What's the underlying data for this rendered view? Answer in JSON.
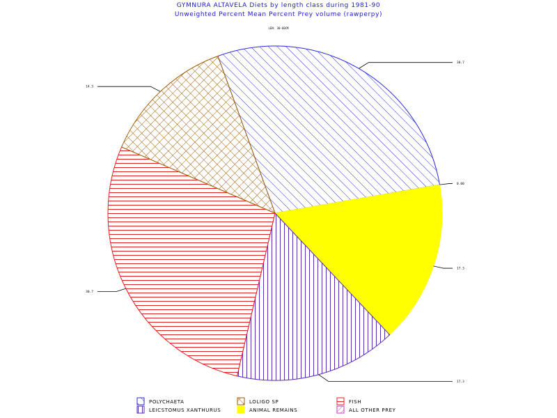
{
  "chart_data": {
    "type": "pie",
    "title": "GYMNURA ALTAVELA Diets by length class during 1981-90",
    "subtitle": "Unweighted Percent Mean Percent Prey  volume (rawperpy)",
    "note": "LEN: 30-60CM",
    "slices": [
      {
        "name": "POLYCHAETA",
        "value": 30.7,
        "label": "30.7",
        "color": "#2a2ad8",
        "pattern": "diag-down"
      },
      {
        "name": "ALL OTHER PREY",
        "value": 0.0,
        "label": "0.00",
        "color": "#c040c0",
        "pattern": "diag-cross-light"
      },
      {
        "name": "ANIMAL REMAINS",
        "value": 17.3,
        "label": "17.3",
        "color": "#ffff00",
        "pattern": "solid"
      },
      {
        "name": "LEICSTOMUS XANTHURUS",
        "value": 17.3,
        "label": "17.3",
        "color": "#5a2ab0",
        "pattern": "vertical"
      },
      {
        "name": "FISH",
        "value": 30.7,
        "label": "30.7",
        "color": "#e02020",
        "pattern": "horizontal"
      },
      {
        "name": "LOLIGO SP",
        "value": 14.3,
        "label": "14.3",
        "color": "#a05a00",
        "pattern": "crosshatch"
      }
    ],
    "legend_placement": "bottom",
    "legend": [
      {
        "name": "POLYCHAETA",
        "color": "#2a2ad8",
        "pattern": "diag-down"
      },
      {
        "name": "LOLIGO SP",
        "color": "#a05a00",
        "pattern": "crosshatch"
      },
      {
        "name": "FISH",
        "color": "#e02020",
        "pattern": "horizontal"
      },
      {
        "name": "LEICSTOMUS XANTHURUS",
        "color": "#5a2ab0",
        "pattern": "vertical"
      },
      {
        "name": "ANIMAL REMAINS",
        "color": "#ffff00",
        "pattern": "solid"
      },
      {
        "name": "ALL OTHER PREY",
        "color": "#c040c0",
        "pattern": "diag-cross-light"
      }
    ]
  }
}
